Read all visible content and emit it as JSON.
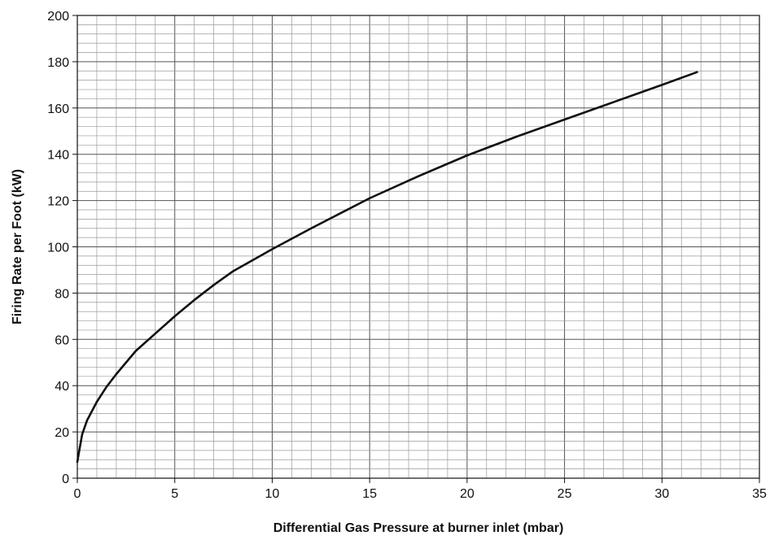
{
  "chart_data": {
    "type": "line",
    "title": "",
    "xlabel": "Differential Gas Pressure at burner inlet (mbar)",
    "ylabel": "Firing Rate per Foot (kW)",
    "xlim": [
      0,
      35
    ],
    "ylim": [
      0,
      200
    ],
    "x_ticks": [
      "0",
      "5",
      "10",
      "15",
      "20",
      "25",
      "30",
      "35"
    ],
    "y_ticks": [
      "0",
      "20",
      "40",
      "60",
      "80",
      "100",
      "120",
      "140",
      "160",
      "180",
      "200"
    ],
    "grid": {
      "major": true,
      "minor": true,
      "x_major_step": 5,
      "x_minor_step": 1,
      "y_major_step": 20,
      "y_minor_step": 4
    },
    "legend": "none",
    "line_color": "#111111",
    "series": [
      {
        "x": [
          0,
          0.1,
          0.25,
          0.5,
          1,
          1.5,
          2,
          3,
          4,
          5,
          6,
          7,
          8,
          10,
          12,
          15,
          17.5,
          20,
          22.5,
          25,
          27.5,
          30,
          31.8
        ],
        "values": [
          7,
          12,
          19,
          25,
          33,
          39.5,
          45,
          55,
          62.5,
          70,
          77,
          83.5,
          89.5,
          99,
          108,
          121,
          130.5,
          139.5,
          147.5,
          155,
          162.5,
          170,
          175.5
        ]
      }
    ]
  }
}
